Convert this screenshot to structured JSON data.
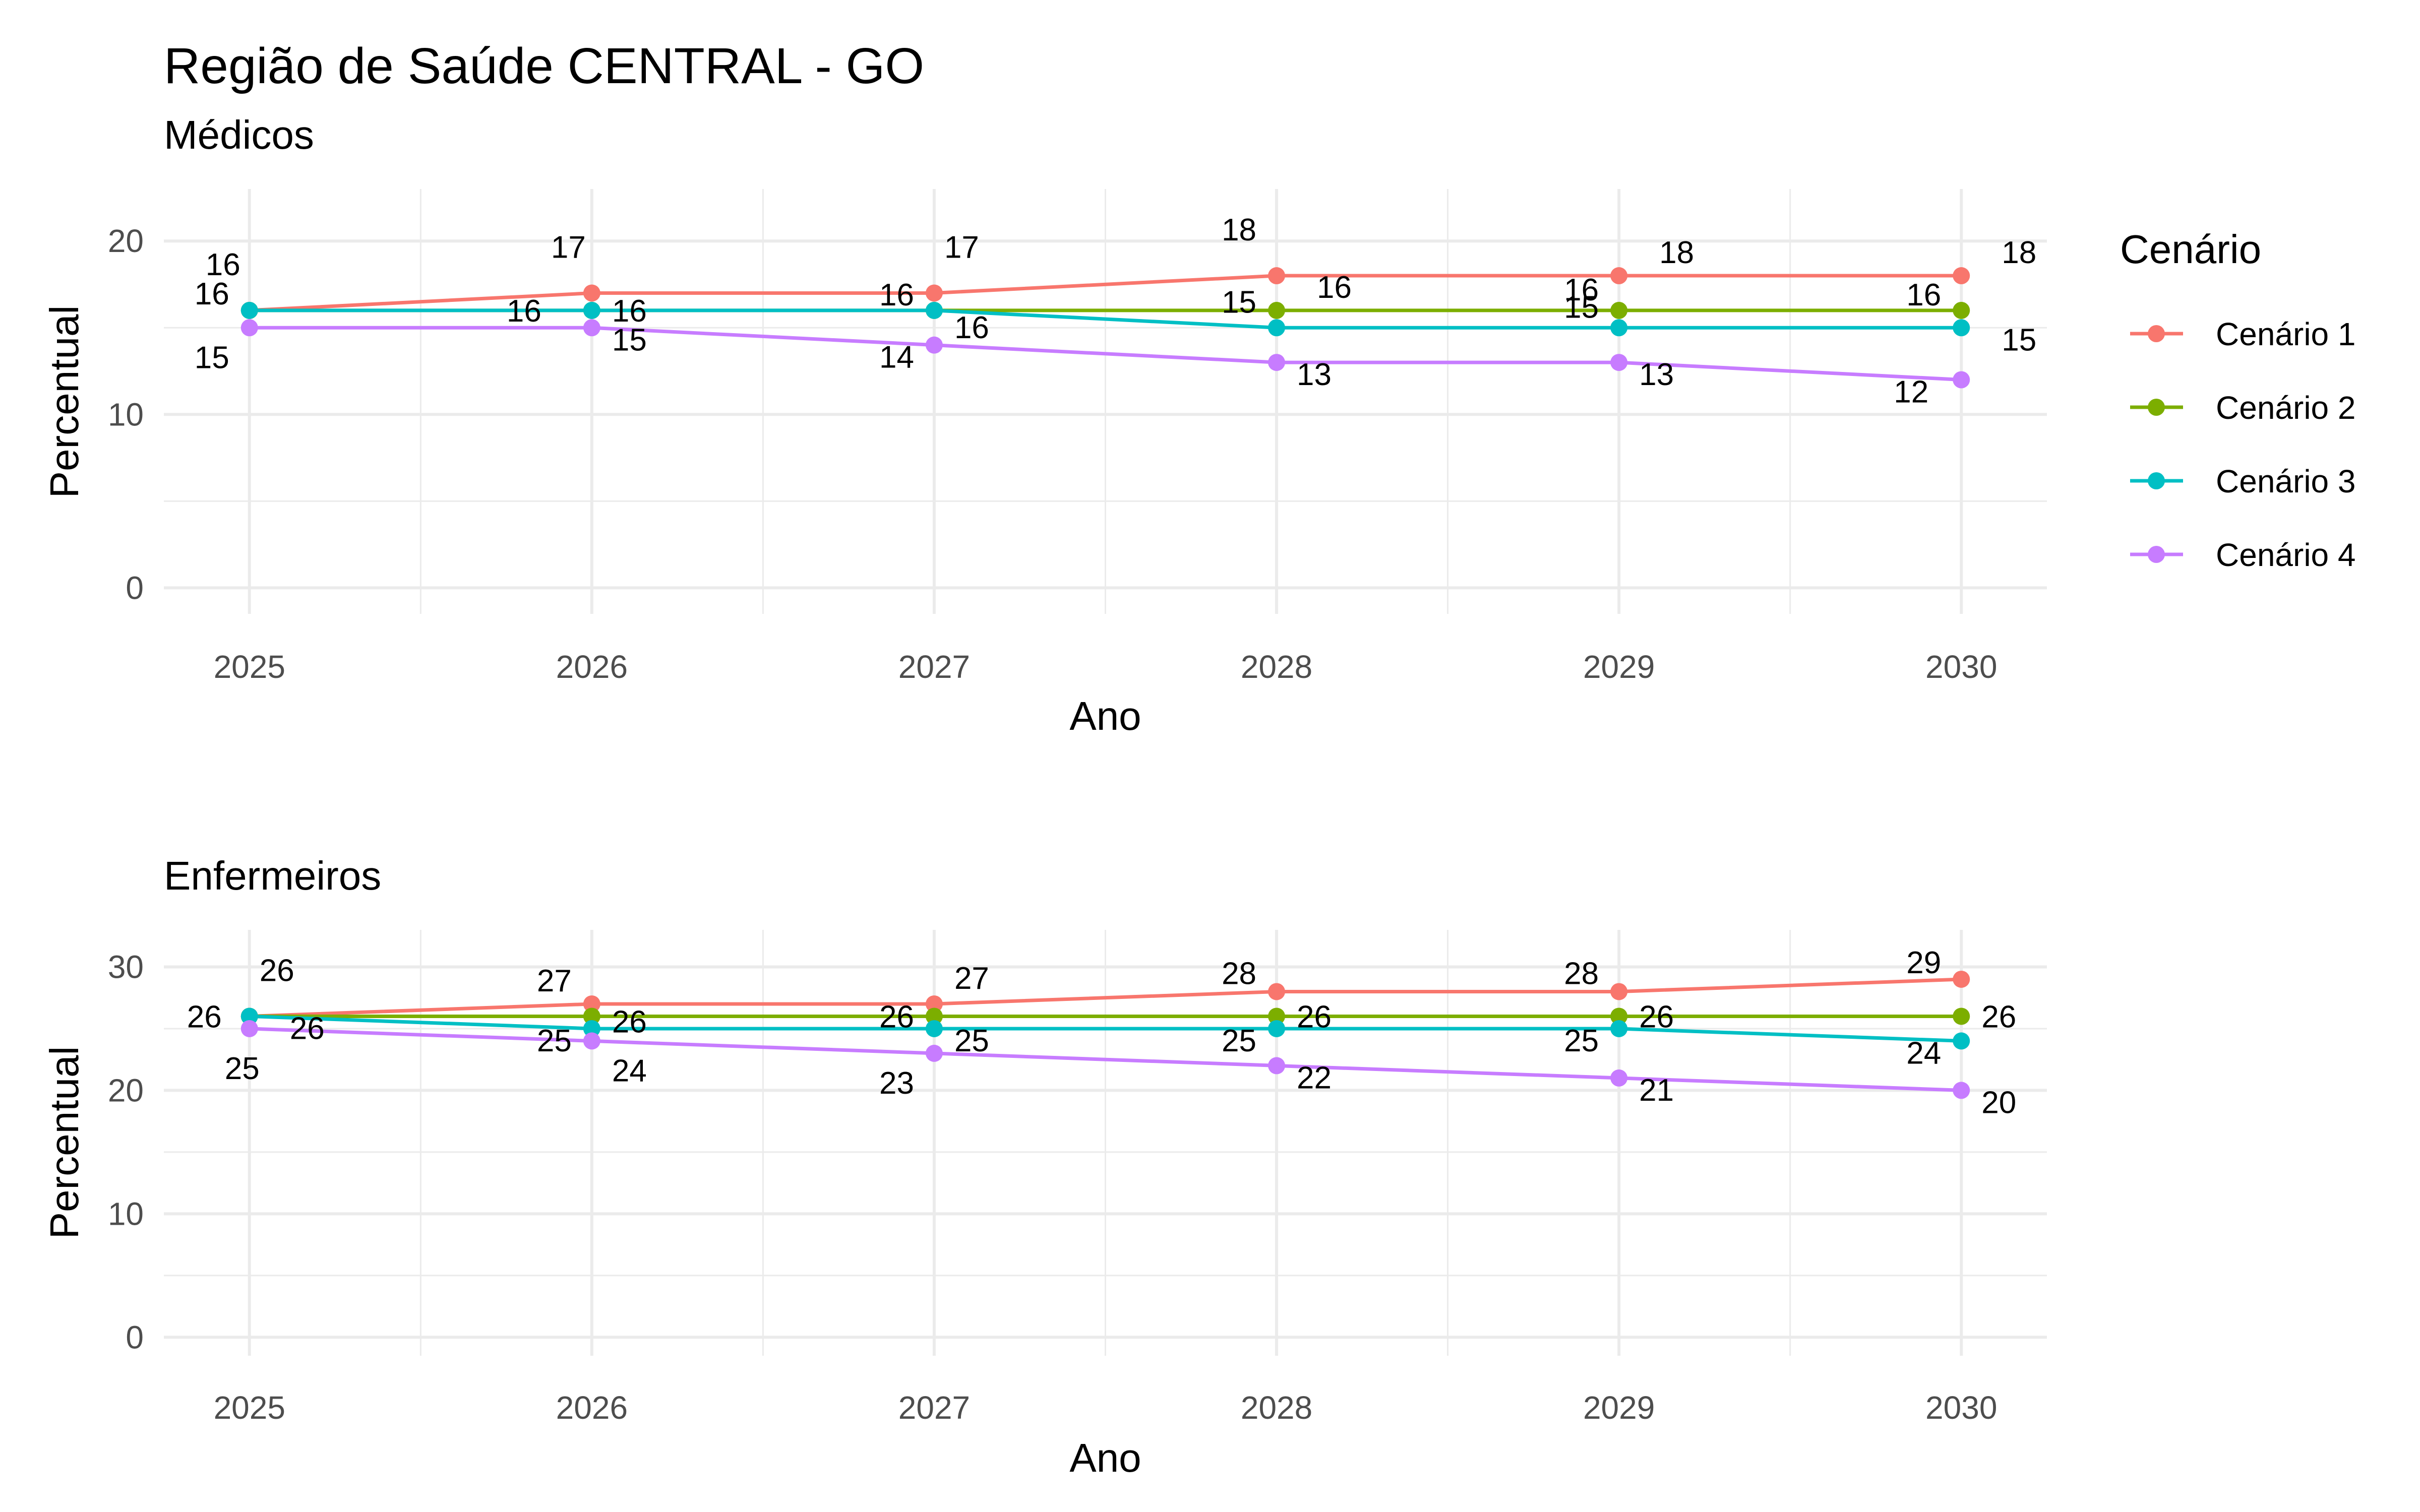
{
  "title": "Região de Saúde CENTRAL - GO",
  "legend": {
    "title": "Cenário",
    "items": [
      {
        "label": "Cenário 1",
        "color": "#F8766D"
      },
      {
        "label": "Cenário 2",
        "color": "#7CAE00"
      },
      {
        "label": "Cenário 3",
        "color": "#00BFC4"
      },
      {
        "label": "Cenário 4",
        "color": "#C77CFF"
      }
    ],
    "placement": "right"
  },
  "chart_data": [
    {
      "type": "line",
      "title": "Médicos",
      "xlabel": "Ano",
      "ylabel": "Percentual",
      "x": [
        2025,
        2026,
        2027,
        2028,
        2029,
        2030
      ],
      "xticks": [
        "2025",
        "2026",
        "2027",
        "2028",
        "2029",
        "2030"
      ],
      "yticks": [
        "0",
        "10",
        "20"
      ],
      "ylim": [
        0,
        20
      ],
      "grid": true,
      "series": [
        {
          "name": "Cenário 1",
          "color": "#F8766D",
          "values": [
            16,
            17,
            17,
            18,
            18,
            18
          ]
        },
        {
          "name": "Cenário 2",
          "color": "#7CAE00",
          "values": [
            16,
            16,
            16,
            16,
            16,
            16
          ]
        },
        {
          "name": "Cenário 3",
          "color": "#00BFC4",
          "values": [
            16,
            16,
            16,
            15,
            15,
            15
          ]
        },
        {
          "name": "Cenário 4",
          "color": "#C77CFF",
          "values": [
            15,
            15,
            14,
            13,
            13,
            12
          ]
        }
      ]
    },
    {
      "type": "line",
      "title": "Enfermeiros",
      "xlabel": "Ano",
      "ylabel": "Percentual",
      "x": [
        2025,
        2026,
        2027,
        2028,
        2029,
        2030
      ],
      "xticks": [
        "2025",
        "2026",
        "2027",
        "2028",
        "2029",
        "2030"
      ],
      "yticks": [
        "0",
        "10",
        "20",
        "30"
      ],
      "ylim": [
        0,
        30
      ],
      "grid": true,
      "series": [
        {
          "name": "Cenário 1",
          "color": "#F8766D",
          "values": [
            26,
            27,
            27,
            28,
            28,
            29
          ]
        },
        {
          "name": "Cenário 2",
          "color": "#7CAE00",
          "values": [
            26,
            26,
            26,
            26,
            26,
            26
          ]
        },
        {
          "name": "Cenário 3",
          "color": "#00BFC4",
          "values": [
            26,
            25,
            25,
            25,
            25,
            24
          ]
        },
        {
          "name": "Cenário 4",
          "color": "#C77CFF",
          "values": [
            25,
            24,
            23,
            22,
            21,
            20
          ]
        }
      ]
    }
  ]
}
